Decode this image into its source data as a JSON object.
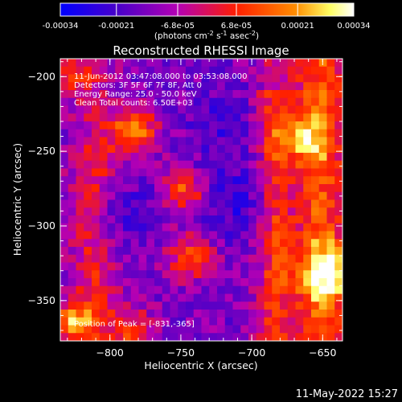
{
  "colorbar": {
    "ticks": [
      "-0.00034",
      "-0.00021",
      "-6.8e-05",
      "6.8e-05",
      "0.00021",
      "0.00034"
    ],
    "tick_values": [
      -0.00034,
      -0.00021,
      -6.8e-05,
      6.8e-05,
      0.00021,
      0.00034
    ],
    "range": [
      -0.00034,
      0.00034
    ],
    "units_prefix": "(photons cm",
    "units_sup1": "-2",
    "units_mid": " s",
    "units_sup2": "-1",
    "units_mid2": " asec",
    "units_sup3": "-2",
    "units_suffix": ")",
    "colors": [
      "#0000ff",
      "#4b00c8",
      "#b400b4",
      "#ff1e00",
      "#ff8c00",
      "#ffff64",
      "#ffffff"
    ]
  },
  "chart_data": {
    "type": "heatmap",
    "title": "Reconstructed RHESSI Image",
    "xlabel": "Heliocentric X (arcsec)",
    "ylabel": "Heliocentric Y (arcsec)",
    "xlim": [
      -835,
      -636
    ],
    "ylim": [
      -377,
      -188
    ],
    "x_ticks": [
      -800,
      -750,
      -700,
      -650
    ],
    "y_ticks": [
      -200,
      -250,
      -300,
      -350
    ],
    "x_tick_labels": [
      "−800",
      "−750",
      "−700",
      "−650"
    ],
    "y_tick_labels": [
      "−200",
      "−250",
      "−300",
      "−350"
    ],
    "annotations": [
      "11-Jun-2012 03:47:08.000 to 03:53:08.000",
      "Detectors: 3F 5F 6F 7F 8F, Att 0",
      "Energy Range: 25.0 - 50.0 keV",
      "Clean     Total counts: 6.50E+03"
    ],
    "peak_label": "Position of Peak = [-831,-365]",
    "peak": [
      -831,
      -365
    ],
    "grid": false
  },
  "timestamp": "11-May-2022 15:27"
}
